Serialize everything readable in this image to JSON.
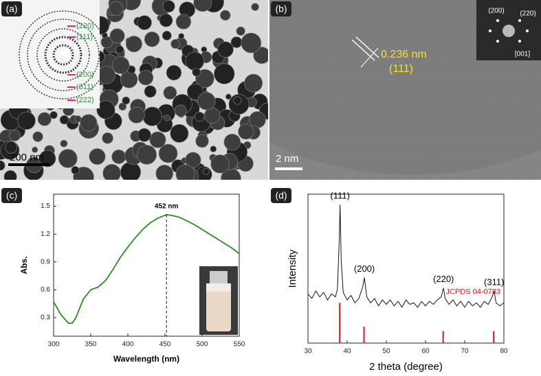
{
  "panels": {
    "a": {
      "label": "(a)",
      "scale_bar": "200 nm",
      "rings": [
        "(220)",
        "(111)",
        "(200)",
        "(311)",
        "(222)"
      ]
    },
    "b": {
      "label": "(b)",
      "spacing": "0.236 nm",
      "plane": "(111)",
      "scale_bar": "2 nm",
      "fft_spots": [
        "(200)",
        "(220)"
      ],
      "zone_axis": "[001]"
    },
    "c": {
      "label": "(c)"
    },
    "d": {
      "label": "(d)"
    }
  },
  "chart_data": [
    {
      "type": "line",
      "xlabel": "Wavelength (nm)",
      "ylabel": "Abs.",
      "color": "#2a8a1f",
      "x": [
        300,
        310,
        320,
        325,
        330,
        340,
        350,
        360,
        370,
        380,
        390,
        400,
        410,
        420,
        430,
        440,
        452,
        460,
        470,
        480,
        490,
        500,
        510,
        520,
        530,
        540,
        550
      ],
      "values": [
        0.47,
        0.33,
        0.24,
        0.24,
        0.3,
        0.5,
        0.6,
        0.63,
        0.7,
        0.82,
        0.95,
        1.06,
        1.16,
        1.25,
        1.32,
        1.37,
        1.41,
        1.4,
        1.38,
        1.34,
        1.3,
        1.25,
        1.2,
        1.15,
        1.1,
        1.05,
        0.99
      ],
      "xlim": [
        300,
        550
      ],
      "xticks": [
        300,
        350,
        400,
        450,
        500,
        550
      ],
      "ylim": [
        0.1,
        1.63
      ],
      "yticks": [
        0.3,
        0.6,
        0.9,
        1.2,
        1.5
      ],
      "annotation": {
        "text": "452 nm",
        "x": 452
      }
    },
    {
      "type": "line",
      "xlabel": "2 theta (degree)",
      "ylabel": "Intensity",
      "color": "#111111",
      "x": [
        30,
        31,
        32,
        33,
        34,
        35,
        36,
        37,
        37.5,
        38,
        38.2,
        38.5,
        39,
        40,
        41,
        42,
        43,
        44,
        44.4,
        45,
        46,
        47,
        48,
        49,
        50,
        51,
        52,
        53,
        54,
        55,
        56,
        57,
        58,
        59,
        60,
        61,
        62,
        63,
        64,
        64.6,
        65,
        66,
        67,
        68,
        69,
        70,
        71,
        72,
        73,
        74,
        75,
        76,
        77,
        77.5,
        78,
        79,
        80
      ],
      "values": [
        33,
        30,
        35,
        31,
        34,
        29,
        33,
        31,
        36,
        70,
        93,
        55,
        34,
        29,
        32,
        27,
        30,
        38,
        44,
        31,
        27,
        30,
        25,
        29,
        26,
        29,
        25,
        28,
        24,
        29,
        26,
        27,
        24,
        28,
        25,
        28,
        26,
        29,
        31,
        37,
        30,
        26,
        29,
        25,
        28,
        24,
        28,
        25,
        27,
        24,
        28,
        26,
        31,
        35,
        27,
        25,
        27
      ],
      "xlim": [
        30,
        80
      ],
      "xticks": [
        30,
        40,
        50,
        60,
        70,
        80
      ],
      "ylim": [
        0,
        100
      ],
      "peaks": [
        {
          "label": "(111)",
          "x": 38.2
        },
        {
          "label": "(200)",
          "x": 44.4
        },
        {
          "label": "(220)",
          "x": 64.6
        },
        {
          "label": "(311)",
          "x": 77.5
        }
      ],
      "reference": {
        "name": "JCPDS 04-0783",
        "color": "#e0141e",
        "x": [
          38.1,
          44.3,
          64.5,
          77.4
        ],
        "values": [
          27,
          11,
          8,
          8
        ]
      }
    }
  ]
}
